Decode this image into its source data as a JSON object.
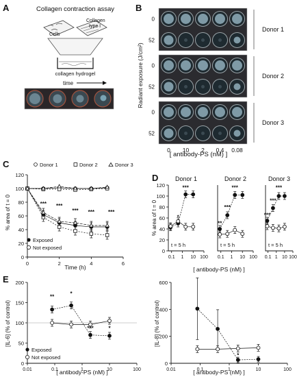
{
  "panel_A": {
    "label": "A",
    "title": "Collagen contraction assay",
    "cells_label": "Cells",
    "collagen_label_1": "Collagen",
    "collagen_label_2": "type I",
    "hydrogel_label": "collagen hydrogel",
    "time_label": "time"
  },
  "panel_B": {
    "label": "B",
    "ylabel": "Radiant exposure (J/cm²)",
    "xlabel": "[ antibody-PS (nM) ]",
    "concentrations": [
      "0",
      "10",
      "2",
      "0.4",
      "0.08"
    ],
    "donors": [
      {
        "name": "Donor 1",
        "rows": [
          "0",
          "52"
        ]
      },
      {
        "name": "Donor 2",
        "rows": [
          "0",
          "52"
        ]
      },
      {
        "name": "Donor 3",
        "rows": [
          "0",
          "52"
        ]
      }
    ]
  },
  "panel_C": {
    "label": "C",
    "legend_top": [
      "Donor 1",
      "Donor 2",
      "Donor 3"
    ],
    "legend_bottom": [
      "Exposed",
      "Not exposed"
    ],
    "ylabel": "% area of t = 0",
    "xlabel": "Time (h)",
    "xticks": [
      "0",
      "2",
      "4",
      "6"
    ],
    "yticks": [
      "0",
      "20",
      "40",
      "60",
      "80",
      "100",
      "120"
    ],
    "stars": [
      "***",
      "***",
      "***",
      "***",
      "***"
    ]
  },
  "panel_D": {
    "label": "D",
    "ylabel": "% area of t = 0",
    "xlabel": "[ antibody-PS (nM) ]",
    "yticks": [
      "0",
      "20",
      "40",
      "60",
      "80",
      "100",
      "120"
    ],
    "xticks": [
      "0.1",
      "1",
      "10",
      "100"
    ],
    "time_note": "t = 5 h",
    "subtitles": [
      "Donor 1",
      "Donor 2",
      "Donor 3"
    ],
    "stars": [
      "*",
      "***",
      "**",
      "***",
      "***",
      "***",
      "***",
      "***"
    ]
  },
  "panel_E": {
    "label": "E",
    "xlabel": "[ antibody-PS (nM) ]",
    "xticks": [
      "0.01",
      "0.1",
      "1",
      "10",
      "100"
    ],
    "left_ylabel": "[IL-6] (% of control)",
    "left_yticks": [
      "0",
      "50",
      "100",
      "150",
      "200"
    ],
    "right_ylabel": "[IL-8] (% of control)",
    "right_yticks": [
      "0",
      "200",
      "400",
      "600"
    ],
    "legend": [
      "Exposed",
      "Not exposed"
    ],
    "stars_left": [
      "**",
      "*",
      "***",
      "*"
    ],
    "stars_right": [
      "*"
    ]
  },
  "chart_data": [
    {
      "type": "line",
      "panel": "C",
      "x": [
        0,
        1,
        2,
        3,
        4,
        5
      ],
      "xlim": [
        0,
        6
      ],
      "ylim": [
        0,
        120
      ],
      "series": [
        {
          "name": "Exposed",
          "donor": "Donor 1",
          "values": [
            100,
            62,
            50,
            46,
            44,
            44
          ]
        },
        {
          "name": "Exposed",
          "donor": "Donor 2",
          "values": [
            100,
            58,
            44,
            38,
            34,
            32
          ]
        },
        {
          "name": "Exposed",
          "donor": "Donor 3",
          "values": [
            100,
            65,
            52,
            50,
            46,
            46
          ]
        },
        {
          "name": "Not exposed",
          "donor": "Donor 1",
          "values": [
            100,
            100,
            101,
            100,
            100,
            101
          ]
        },
        {
          "name": "Not exposed",
          "donor": "Donor 2",
          "values": [
            100,
            99,
            99,
            98,
            99,
            100
          ]
        },
        {
          "name": "Not exposed",
          "donor": "Donor 3",
          "values": [
            100,
            100,
            103,
            100,
            100,
            102
          ]
        }
      ]
    },
    {
      "type": "line",
      "panel": "D",
      "log_x": true,
      "x": [
        0.08,
        0.4,
        2,
        10
      ],
      "ylim": [
        0,
        120
      ],
      "series": [
        {
          "name": "Exposed",
          "donor": "Donor 1",
          "values": [
            43,
            50,
            103,
            103
          ]
        },
        {
          "name": "Not exposed",
          "donor": "Donor 1",
          "values": [
            45,
            54,
            44,
            44
          ]
        },
        {
          "name": "Exposed",
          "donor": "Donor 2",
          "values": [
            40,
            65,
            102,
            102
          ]
        },
        {
          "name": "Not exposed",
          "donor": "Donor 2",
          "values": [
            30,
            31,
            38,
            31
          ]
        },
        {
          "name": "Exposed",
          "donor": "Donor 3",
          "values": [
            55,
            78,
            100,
            100
          ]
        },
        {
          "name": "Not exposed",
          "donor": "Donor 3",
          "values": [
            45,
            42,
            41,
            44
          ]
        }
      ]
    },
    {
      "type": "line",
      "panel": "E-left",
      "log_x": true,
      "x": [
        0.08,
        0.4,
        2,
        10
      ],
      "ylim": [
        0,
        200
      ],
      "series": [
        {
          "name": "Exposed",
          "values": [
            133,
            143,
            70,
            68
          ]
        },
        {
          "name": "Not exposed",
          "values": [
            100,
            96,
            96,
            105
          ]
        }
      ]
    },
    {
      "type": "line",
      "panel": "E-right",
      "log_x": true,
      "x": [
        0.08,
        0.4,
        2,
        10
      ],
      "ylim": [
        0,
        600
      ],
      "series": [
        {
          "name": "Exposed",
          "values": [
            405,
            255,
            25,
            30
          ]
        },
        {
          "name": "Not exposed",
          "values": [
            105,
            105,
            110,
            115
          ]
        }
      ]
    }
  ]
}
